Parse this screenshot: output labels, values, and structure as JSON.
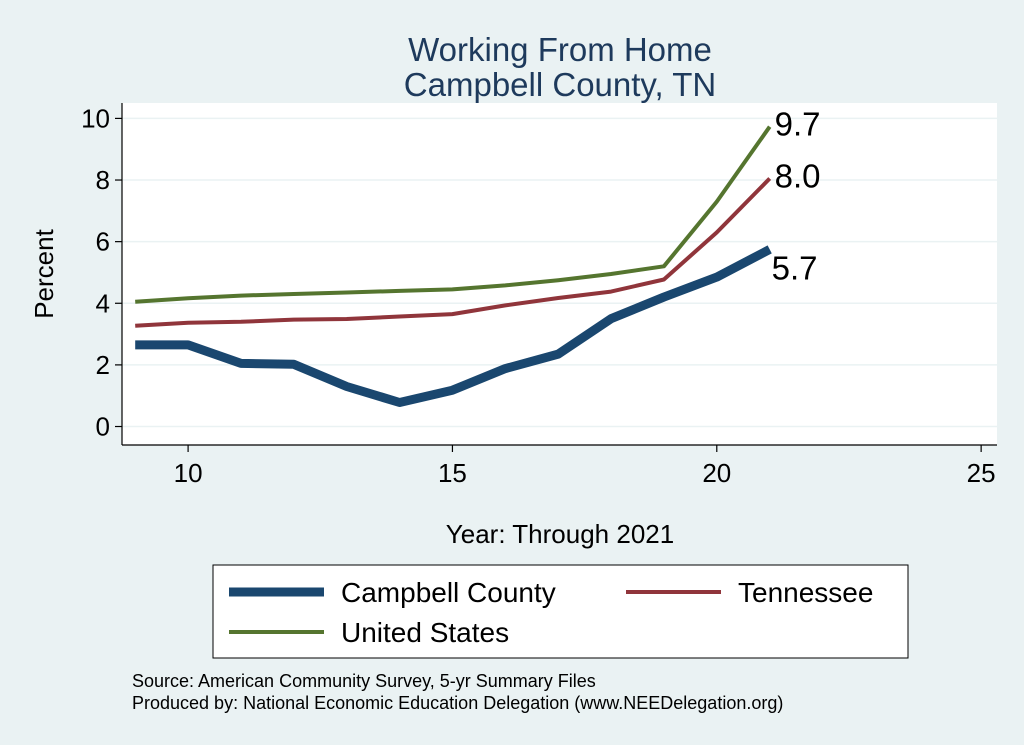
{
  "chart_data": {
    "type": "line",
    "title": "Working From Home",
    "subtitle": "Campbell County, TN",
    "xlabel": "Year: Through 2021",
    "ylabel": "Percent",
    "xlim": [
      8.75,
      25.3
    ],
    "ylim": [
      -0.6,
      10.5
    ],
    "xticks": [
      10,
      15,
      20,
      25
    ],
    "yticks": [
      0,
      2,
      4,
      6,
      8,
      10
    ],
    "grid": true,
    "legend_position": "bottom",
    "series": [
      {
        "name": "Campbell County",
        "color": "#1a476f",
        "x": [
          9,
          10,
          11,
          12,
          13,
          14,
          15,
          16,
          17,
          18,
          19,
          20,
          21
        ],
        "values": [
          2.65,
          2.65,
          2.05,
          2.02,
          1.3,
          0.78,
          1.18,
          1.88,
          2.35,
          3.5,
          4.2,
          4.85,
          5.75
        ],
        "end_label": "5.7"
      },
      {
        "name": "Tennessee",
        "color": "#90353b",
        "x": [
          9,
          10,
          11,
          12,
          13,
          14,
          15,
          16,
          17,
          18,
          19,
          20,
          21
        ],
        "values": [
          3.27,
          3.37,
          3.4,
          3.47,
          3.49,
          3.57,
          3.65,
          3.93,
          4.17,
          4.38,
          4.77,
          6.3,
          8.05
        ],
        "end_label": "8.0"
      },
      {
        "name": "United States",
        "color": "#55752f",
        "x": [
          9,
          10,
          11,
          12,
          13,
          14,
          15,
          16,
          17,
          18,
          19,
          20,
          21
        ],
        "values": [
          4.05,
          4.16,
          4.25,
          4.3,
          4.35,
          4.4,
          4.45,
          4.58,
          4.75,
          4.95,
          5.2,
          7.3,
          9.73
        ],
        "end_label": "9.7"
      }
    ],
    "notes": [
      "Source: American Community Survey, 5-yr Summary Files",
      "Produced by: National Economic Education Delegation (www.NEEDelegation.org)"
    ]
  }
}
